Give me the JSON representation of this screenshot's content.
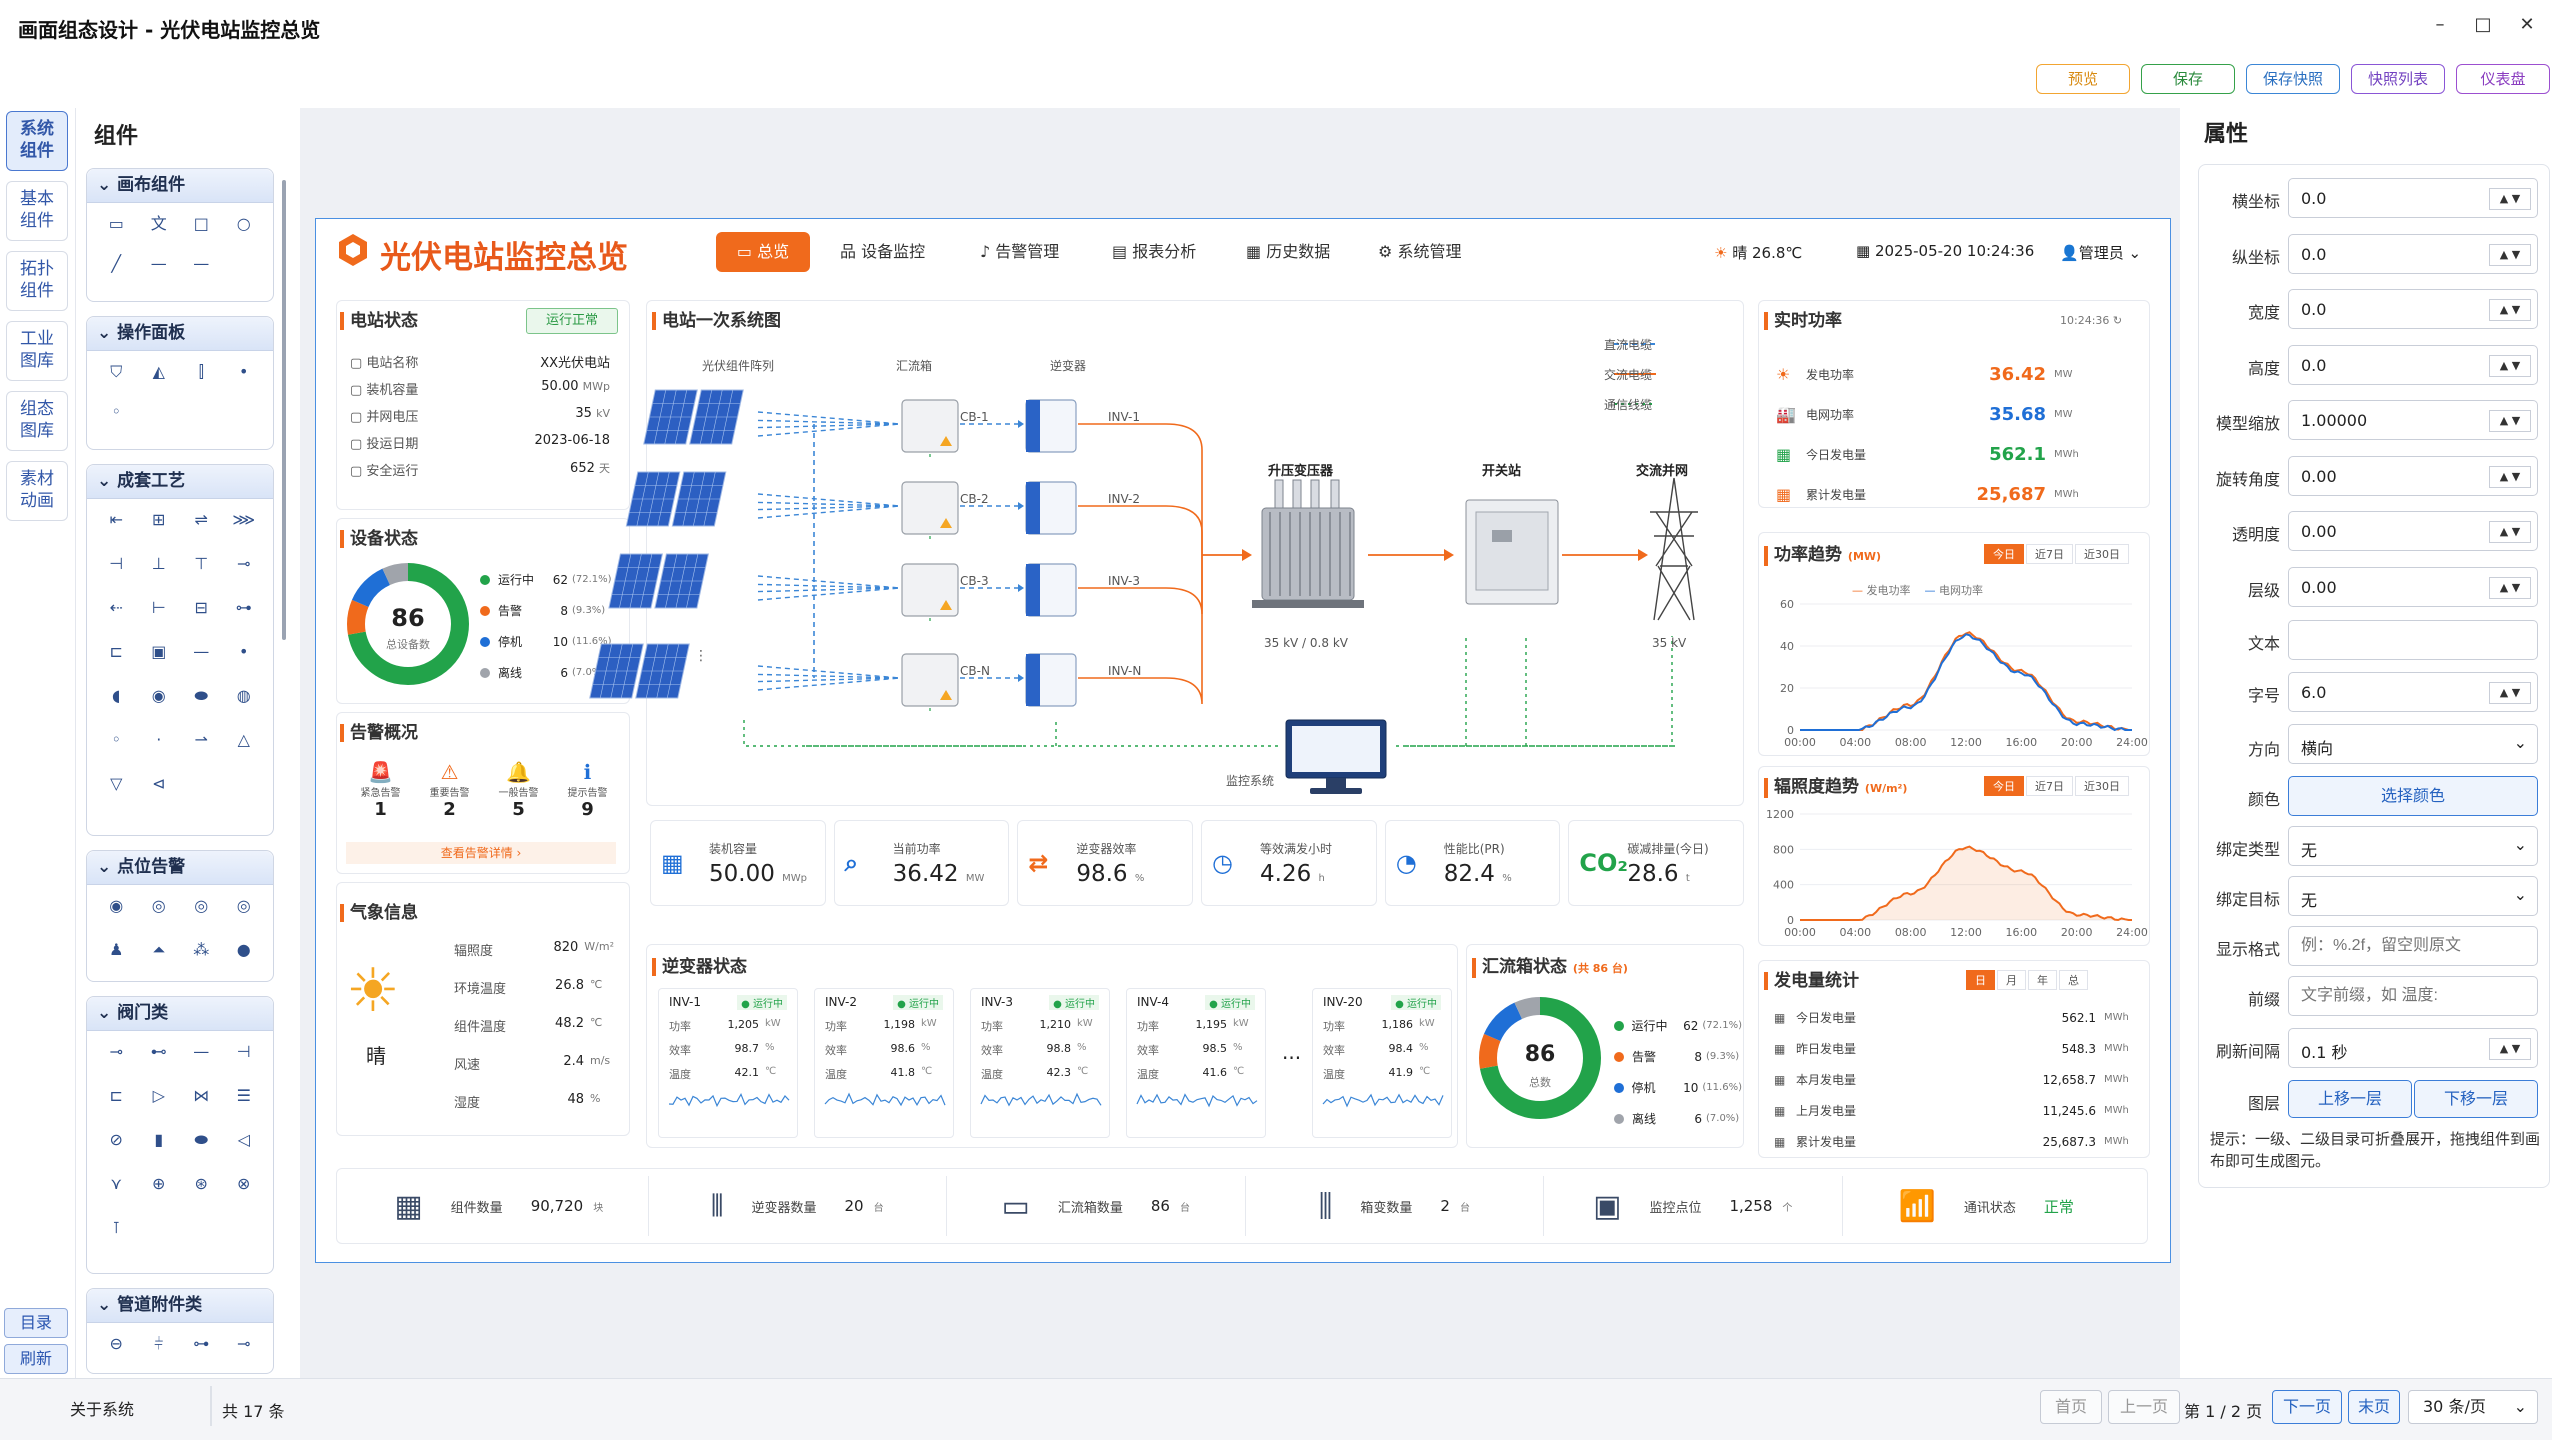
{
  "window": {
    "title": "画面组态设计 - 光伏电站监控总览",
    "minimize": "–",
    "maximize": "□",
    "close": "✕"
  },
  "toolbar": {
    "preview": "预览",
    "save": "保存",
    "save_snapshot": "保存快照",
    "snapshot_list": "快照列表",
    "dashboard": "仪表盘"
  },
  "rail": {
    "items": [
      "系统\n组件",
      "基本\n组件",
      "拓扑\n组件",
      "工业\n图库",
      "组态\n图库",
      "素材\n动画"
    ],
    "catalog": "目录",
    "refresh": "刷新"
  },
  "components": {
    "title": "组件",
    "groups": [
      "画布组件",
      "操作面板",
      "成套工艺",
      "点位告警",
      "阀门类",
      "管道附件类"
    ]
  },
  "dashboard": {
    "title": "光伏电站监控总览",
    "nav": [
      "总览",
      "设备监控",
      "告警管理",
      "报表分析",
      "历史数据",
      "系统管理"
    ],
    "weather_top": "晴",
    "temp_top": "26.8℃",
    "datetime": "2025-05-20  10:24:36",
    "user": "管理员",
    "station": {
      "title": "电站状态",
      "badge": "运行正常",
      "rows": [
        {
          "k": "电站名称",
          "v": "XX光伏电站",
          "u": ""
        },
        {
          "k": "装机容量",
          "v": "50.00",
          "u": "MWp"
        },
        {
          "k": "并网电压",
          "v": "35",
          "u": "kV"
        },
        {
          "k": "投运日期",
          "v": "2023-06-18",
          "u": ""
        },
        {
          "k": "安全运行",
          "v": "652",
          "u": "天"
        }
      ]
    },
    "device": {
      "title": "设备状态",
      "total": "86",
      "total_label": "总设备数",
      "legend": [
        {
          "name": "运行中",
          "v": "62",
          "p": "(72.1%)"
        },
        {
          "name": "告警",
          "v": "8",
          "p": "(9.3%)"
        },
        {
          "name": "停机",
          "v": "10",
          "p": "(11.6%)"
        },
        {
          "name": "离线",
          "v": "6",
          "p": "(7.0%)"
        }
      ]
    },
    "alarm": {
      "title": "告警概况",
      "items": [
        {
          "n": "紧急告警",
          "v": "1"
        },
        {
          "n": "重要告警",
          "v": "2"
        },
        {
          "n": "一般告警",
          "v": "5"
        },
        {
          "n": "提示告警",
          "v": "9"
        }
      ],
      "more": "查看告警详情 ›"
    },
    "weather": {
      "title": "气象信息",
      "cond": "晴",
      "rows": [
        {
          "k": "辐照度",
          "v": "820",
          "u": "W/m²"
        },
        {
          "k": "环境温度",
          "v": "26.8",
          "u": "℃"
        },
        {
          "k": "组件温度",
          "v": "48.2",
          "u": "℃"
        },
        {
          "k": "风速",
          "v": "2.4",
          "u": "m/s"
        },
        {
          "k": "湿度",
          "v": "48",
          "u": "%"
        }
      ]
    },
    "diagram": {
      "title": "电站一次系统图",
      "col_pv": "光伏组件阵列",
      "col_cb": "汇流箱",
      "col_inv": "逆变器",
      "cb": [
        "CB-1",
        "CB-2",
        "CB-3",
        "CB-N"
      ],
      "inv": [
        "INV-1",
        "INV-2",
        "INV-3",
        "INV-N"
      ],
      "transformer": "升压变压器",
      "transformer_v": "35 kV / 0.8 kV",
      "switch": "开关站",
      "grid": "交流并网",
      "grid_v": "35 kV",
      "monitor": "监控系统",
      "legend": [
        "直流电缆",
        "交流电缆",
        "通信线缆"
      ]
    },
    "kpis": [
      {
        "n": "装机容量",
        "v": "50.00",
        "u": "MWp"
      },
      {
        "n": "当前功率",
        "v": "36.42",
        "u": "MW"
      },
      {
        "n": "逆变器效率",
        "v": "98.6",
        "u": "%"
      },
      {
        "n": "等效满发小时",
        "v": "4.26",
        "u": "h"
      },
      {
        "n": "性能比(PR)",
        "v": "82.4",
        "u": "%"
      },
      {
        "n": "碳减排量(今日)",
        "v": "28.6",
        "u": "t"
      }
    ],
    "inverters": {
      "title": "逆变器状态",
      "status": "运行中",
      "labels": [
        "功率",
        "效率",
        "温度"
      ],
      "units": [
        "kW",
        "%",
        "℃"
      ],
      "items": [
        {
          "name": "INV-1",
          "p": "1,205",
          "e": "98.7",
          "t": "42.1"
        },
        {
          "name": "INV-2",
          "p": "1,198",
          "e": "98.6",
          "t": "41.8"
        },
        {
          "name": "INV-3",
          "p": "1,210",
          "e": "98.8",
          "t": "42.3"
        },
        {
          "name": "INV-4",
          "p": "1,195",
          "e": "98.5",
          "t": "41.6"
        },
        {
          "name": "INV-20",
          "p": "1,186",
          "e": "98.4",
          "t": "41.9"
        }
      ],
      "ellipsis": "···"
    },
    "combiner": {
      "title": "汇流箱状态",
      "count": "(共 86 台)",
      "total": "86",
      "total_label": "总数"
    },
    "realtime": {
      "title": "实时功率",
      "time": "10:24:36",
      "rows": [
        {
          "k": "发电功率",
          "v": "36.42",
          "u": "MW"
        },
        {
          "k": "电网功率",
          "v": "35.68",
          "u": "MW"
        },
        {
          "k": "今日发电量",
          "v": "562.1",
          "u": "MWh"
        },
        {
          "k": "累计发电量",
          "v": "25,687",
          "u": "MWh"
        }
      ]
    },
    "power_trend": {
      "title": "功率趋势",
      "unit": "(MW)",
      "tabs": [
        "今日",
        "近7日",
        "近30日"
      ],
      "legend": [
        "发电功率",
        "电网功率"
      ]
    },
    "irr_trend": {
      "title": "辐照度趋势",
      "unit": "(W/m²)",
      "tabs": [
        "今日",
        "近7日",
        "近30日"
      ]
    },
    "energy": {
      "title": "发电量统计",
      "tabs": [
        "日",
        "月",
        "年",
        "总"
      ],
      "rows": [
        {
          "k": "今日发电量",
          "v": "562.1"
        },
        {
          "k": "昨日发电量",
          "v": "548.3"
        },
        {
          "k": "本月发电量",
          "v": "12,658.7"
        },
        {
          "k": "上月发电量",
          "v": "11,245.6"
        },
        {
          "k": "累计发电量",
          "v": "25,687.3"
        }
      ],
      "u": "MWh"
    },
    "footer": [
      {
        "n": "组件数量",
        "v": "90,720",
        "u": "块"
      },
      {
        "n": "逆变器数量",
        "v": "20",
        "u": "台"
      },
      {
        "n": "汇流箱数量",
        "v": "86",
        "u": "台"
      },
      {
        "n": "箱变数量",
        "v": "2",
        "u": "台"
      },
      {
        "n": "监控点位",
        "v": "1,258",
        "u": "个"
      },
      {
        "n": "通讯状态",
        "v": "正常",
        "u": ""
      }
    ]
  },
  "chart_data": [
    {
      "type": "line",
      "title": "功率趋势",
      "x": [
        "00:00",
        "04:00",
        "08:00",
        "12:00",
        "16:00",
        "20:00",
        "24:00"
      ],
      "ylim": [
        0,
        60
      ],
      "yticks": [
        0,
        20,
        40,
        60
      ],
      "series": [
        {
          "name": "发电功率",
          "values": [
            0,
            0,
            12,
            46,
            28,
            4,
            0
          ]
        },
        {
          "name": "电网功率",
          "values": [
            0,
            0,
            11,
            45,
            27,
            3,
            0
          ]
        }
      ]
    },
    {
      "type": "area",
      "title": "辐照度趋势",
      "x": [
        "00:00",
        "04:00",
        "08:00",
        "12:00",
        "16:00",
        "20:00",
        "24:00"
      ],
      "ylim": [
        0,
        1200
      ],
      "yticks": [
        0,
        400,
        800,
        1200
      ],
      "series": [
        {
          "values": [
            0,
            0,
            300,
            820,
            550,
            60,
            0
          ]
        }
      ]
    },
    {
      "type": "pie",
      "title": "设备状态",
      "categories": [
        "运行中",
        "告警",
        "停机",
        "离线"
      ],
      "values": [
        62,
        8,
        10,
        6
      ]
    },
    {
      "type": "pie",
      "title": "汇流箱状态",
      "categories": [
        "运行中",
        "告警",
        "停机",
        "离线"
      ],
      "values": [
        62,
        8,
        10,
        6
      ]
    }
  ],
  "colors": {
    "accent": "#f06a1c",
    "blue": "#1f6fd6",
    "green": "#22a34a",
    "gray": "#a0a4ab",
    "red": "#e53935"
  },
  "props": {
    "title": "属性",
    "rows": [
      {
        "k": "横坐标",
        "v": "0.0"
      },
      {
        "k": "纵坐标",
        "v": "0.0"
      },
      {
        "k": "宽度",
        "v": "0.0"
      },
      {
        "k": "高度",
        "v": "0.0"
      },
      {
        "k": "模型缩放",
        "v": "1.00000"
      },
      {
        "k": "旋转角度",
        "v": "0.00"
      },
      {
        "k": "透明度",
        "v": "0.00"
      },
      {
        "k": "层级",
        "v": "0.00"
      }
    ],
    "text_label": "文本",
    "font_label": "字号",
    "font_value": "6.0",
    "dir_label": "方向",
    "dir_value": "横向",
    "color_label": "颜色",
    "color_btn": "选择颜色",
    "bind_type_label": "绑定类型",
    "bind_type": "无",
    "bind_target_label": "绑定目标",
    "bind_target": "无",
    "format_label": "显示格式",
    "format_ph": "例：%.2f，留空则原文",
    "prefix_label": "前缀",
    "prefix_ph": "文字前缀，如 温度:",
    "refresh_label": "刷新间隔",
    "refresh_value": "0.1 秒",
    "layer_label": "图层",
    "layer_up": "上移一层",
    "layer_down": "下移一层",
    "hint": "提示：一级、二级目录可折叠展开，拖拽组件到画布即可生成图元。"
  },
  "status": {
    "about": "关于系统",
    "total": "共 17 条",
    "first": "首页",
    "prev": "上一页",
    "page": "第 1 / 2 页",
    "next": "下一页",
    "last": "末页",
    "per": "30 条/页"
  }
}
